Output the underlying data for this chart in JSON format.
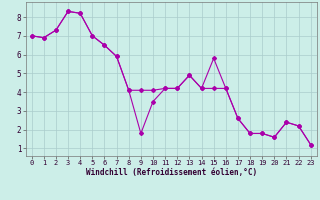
{
  "bg_color": "#cceee8",
  "grid_color": "#aacccc",
  "line_color": "#aa00aa",
  "line1_y": [
    7.0,
    6.9,
    7.3,
    8.3,
    8.2,
    7.0,
    6.5,
    5.9,
    4.1,
    1.8,
    3.5,
    4.2,
    4.2,
    4.9,
    4.2,
    5.8,
    4.2,
    2.6,
    1.8,
    1.8,
    1.6,
    2.4,
    2.2,
    1.2
  ],
  "line2_y": [
    7.0,
    6.9,
    7.3,
    8.3,
    8.2,
    7.0,
    6.5,
    5.9,
    4.1,
    4.1,
    4.1,
    4.2,
    4.2,
    4.9,
    4.2,
    4.2,
    4.2,
    2.6,
    1.8,
    1.8,
    1.6,
    2.4,
    2.2,
    1.2
  ],
  "x": [
    0,
    1,
    2,
    3,
    4,
    5,
    6,
    7,
    8,
    9,
    10,
    11,
    12,
    13,
    14,
    15,
    16,
    17,
    18,
    19,
    20,
    21,
    22,
    23
  ],
  "xlabel": "Windchill (Refroidissement éolien,°C)",
  "xlim": [
    -0.5,
    23.5
  ],
  "ylim": [
    0.6,
    8.8
  ],
  "yticks": [
    1,
    2,
    3,
    4,
    5,
    6,
    7,
    8
  ],
  "xticks": [
    0,
    1,
    2,
    3,
    4,
    5,
    6,
    7,
    8,
    9,
    10,
    11,
    12,
    13,
    14,
    15,
    16,
    17,
    18,
    19,
    20,
    21,
    22,
    23
  ]
}
